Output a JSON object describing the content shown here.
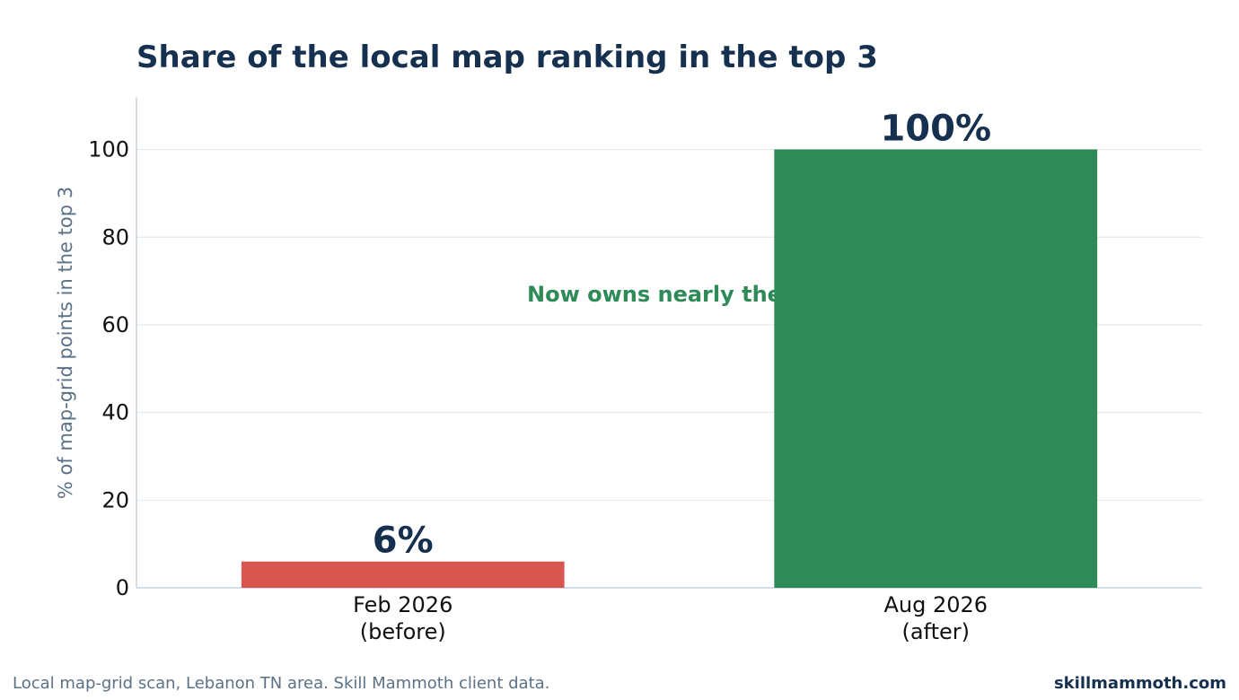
{
  "title": "Share of the local map ranking in the top 3",
  "footer": {
    "source": "Local map-grid scan, Lebanon TN area. Skill Mammoth client data.",
    "brand": "skillmammoth.com"
  },
  "colors": {
    "before_bar": "#d95550",
    "after_bar": "#2e8a57",
    "title": "#16304f",
    "axis_label": "#5b7186",
    "grid": "#e3e9ef",
    "axis": "#c6d3df"
  },
  "chart_data": {
    "type": "bar",
    "title": "Share of the local map ranking in the top 3",
    "xlabel": "",
    "ylabel": "% of map-grid points in the top 3",
    "categories": [
      [
        "Feb 2026",
        "(before)"
      ],
      [
        "Aug 2026",
        "(after)"
      ]
    ],
    "values": [
      6,
      100
    ],
    "value_labels": [
      "6%",
      "100%"
    ],
    "ylim": [
      0,
      112
    ],
    "yticks": [
      0,
      20,
      40,
      60,
      80,
      100
    ],
    "grid": true,
    "annotation": {
      "text": "Now owns nearly the entire map",
      "target_category_index": 1,
      "text_position_value": 67,
      "arrow_tip_value": 77
    }
  }
}
